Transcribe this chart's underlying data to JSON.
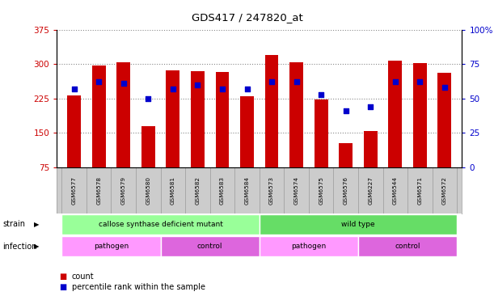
{
  "title": "GDS417 / 247820_at",
  "samples": [
    "GSM6577",
    "GSM6578",
    "GSM6579",
    "GSM6580",
    "GSM6581",
    "GSM6582",
    "GSM6583",
    "GSM6584",
    "GSM6573",
    "GSM6574",
    "GSM6575",
    "GSM6576",
    "GSM6227",
    "GSM6544",
    "GSM6571",
    "GSM6572"
  ],
  "bar_values": [
    232,
    297,
    304,
    165,
    287,
    284,
    282,
    230,
    320,
    304,
    222,
    127,
    154,
    308,
    302,
    281
  ],
  "dot_values": [
    57,
    62,
    61,
    50,
    57,
    60,
    57,
    57,
    62,
    62,
    53,
    41,
    44,
    62,
    62,
    58
  ],
  "bar_color": "#cc0000",
  "dot_color": "#0000cc",
  "ylim_left": [
    75,
    375
  ],
  "ylim_right": [
    0,
    100
  ],
  "yticks_left": [
    75,
    150,
    225,
    300,
    375
  ],
  "yticks_right": [
    0,
    25,
    50,
    75,
    100
  ],
  "ytick_labels_left": [
    "75",
    "150",
    "225",
    "300",
    "375"
  ],
  "ytick_labels_right": [
    "0",
    "25",
    "50",
    "75",
    "100%"
  ],
  "left_tick_color": "#cc0000",
  "right_tick_color": "#0000cc",
  "strain_groups": [
    {
      "label": "callose synthase deficient mutant",
      "start": 0,
      "end": 8,
      "color": "#99ff99"
    },
    {
      "label": "wild type",
      "start": 8,
      "end": 16,
      "color": "#66dd66"
    }
  ],
  "infection_groups": [
    {
      "label": "pathogen",
      "start": 0,
      "end": 4,
      "color": "#ff99ff"
    },
    {
      "label": "control",
      "start": 4,
      "end": 8,
      "color": "#dd66dd"
    },
    {
      "label": "pathogen",
      "start": 8,
      "end": 12,
      "color": "#ff99ff"
    },
    {
      "label": "control",
      "start": 12,
      "end": 16,
      "color": "#dd66dd"
    }
  ],
  "legend_count_color": "#cc0000",
  "legend_dot_color": "#0000cc",
  "bar_width": 0.55,
  "grid_color": "#888888",
  "bg_color": "#ffffff",
  "tick_area_color": "#cccccc"
}
